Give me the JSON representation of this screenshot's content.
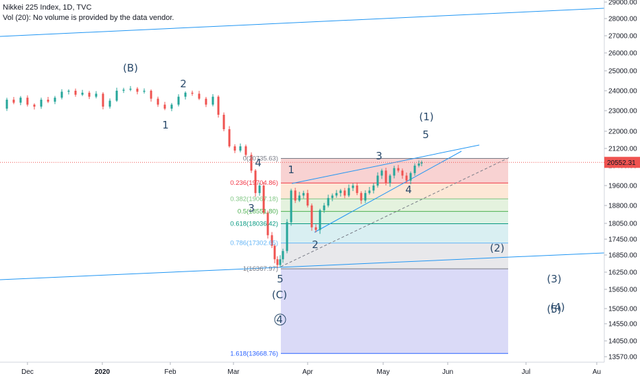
{
  "header": {
    "symbol_line": "Nikkei 225 Index, 1D, TVC",
    "volume_line": "Vol (20): No volume is provided by the data vendor."
  },
  "chart_data": {
    "type": "candlestick",
    "title": "Nikkei 225 Index, 1D, TVC",
    "y_axis": {
      "position": "right",
      "ticks": [
        "29000.00",
        "28000.00",
        "27000.00",
        "26000.00",
        "25000.00",
        "24000.00",
        "23000.00",
        "22000.00",
        "21200.00",
        "20400.00",
        "19600.00",
        "18800.00",
        "18050.00",
        "17450.00",
        "16850.00",
        "16250.00",
        "15650.00",
        "15050.00",
        "14550.00",
        "14050.00",
        "13570.00"
      ],
      "last_price_label": "20552.31",
      "last_price": 20552.31
    },
    "x_axis": {
      "ticks": [
        "Dec",
        "2020",
        "Feb",
        "Mar",
        "Apr",
        "May",
        "Jun",
        "Jul",
        "Au"
      ]
    },
    "fib_levels": [
      {
        "ratio": "0",
        "label": "0(20735.63)",
        "value": 20735.63
      },
      {
        "ratio": "0.236",
        "label": "0.236(19704.86)",
        "value": 19704.86
      },
      {
        "ratio": "0.382",
        "label": "0.382(19067.18)",
        "value": 19067.18
      },
      {
        "ratio": "0.5",
        "label": "0.5(18551.80)",
        "value": 18551.8
      },
      {
        "ratio": "0.618",
        "label": "0.618(18036.42)",
        "value": 18036.42
      },
      {
        "ratio": "0.786",
        "label": "0.786(17302.65)",
        "value": 17302.65
      },
      {
        "ratio": "1",
        "label": "1(16367.97)",
        "value": 16367.97
      },
      {
        "ratio": "1.618",
        "label": "1.618(13668.76)",
        "value": 13668.76
      }
    ],
    "wave_labels": [
      "(B)",
      "2",
      "1",
      "4",
      "3",
      "5",
      "(C)",
      "4",
      "1",
      "2",
      "3",
      "4",
      "5",
      "(1)",
      "(2)",
      "(3)",
      "(4)",
      "(5)"
    ],
    "colors": {
      "up": "#26a69a",
      "down": "#ef5350",
      "trendline": "#2196f3",
      "last_price": "#ef5350",
      "wave_text": "#2a4a6b",
      "fib_0": "#787b86",
      "fib_0236": "#f23645",
      "fib_0382": "#81c784",
      "fib_05": "#4caf50",
      "fib_0618": "#089981",
      "fib_0786": "#64b5f6",
      "fib_1": "#787b86",
      "fib_1618": "#2962ff"
    }
  }
}
